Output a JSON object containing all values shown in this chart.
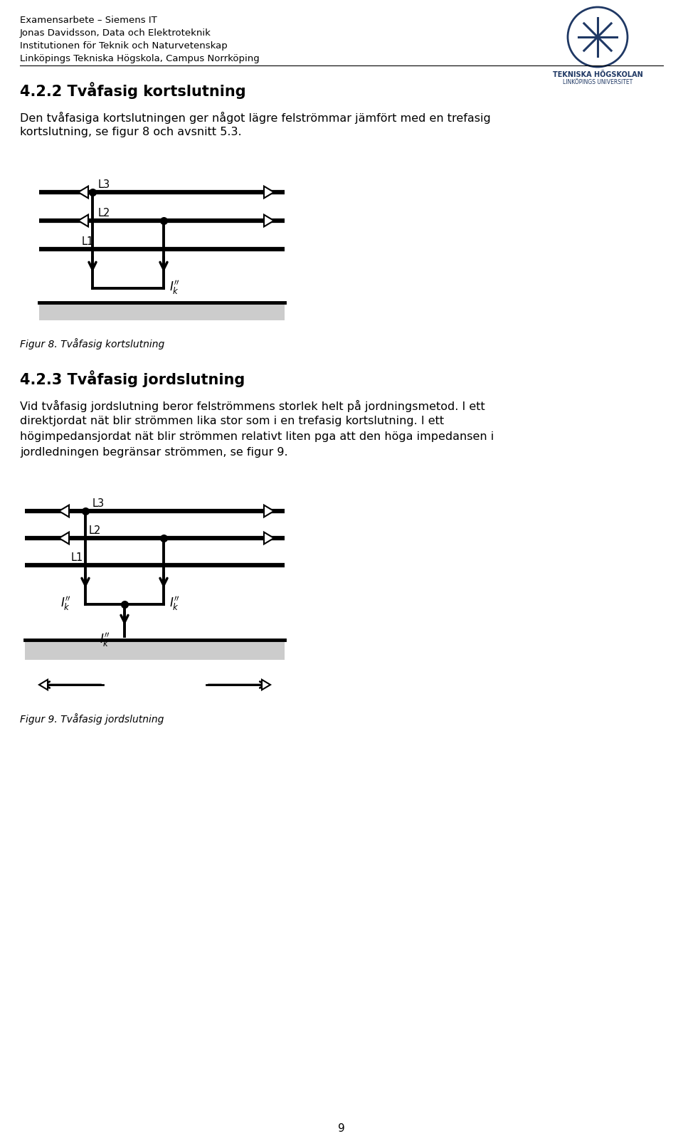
{
  "bg_color": "#ffffff",
  "header_lines": [
    "Examensarbete – Siemens IT",
    "Jonas Davidsson, Data och Elektroteknik",
    "Institutionen för Teknik och Naturvetenskap",
    "Linköpings Tekniska Högskola, Campus Norrköping"
  ],
  "logo_text1": "TEKNISKA HÖGSKOLAN",
  "logo_text2": "LINKÖPINGS UNIVERSITET",
  "section_title": "4.2.2 Tvåfasig kortslutning",
  "para1_line1": "Den tvåfasiga kortslutningen ger något lägre felströmmar jämfört med en trefasig",
  "para1_line2": "kortslutning, se figur 8 och avsnitt 5.3.",
  "fig8_caption": "Figur 8. Tvåfasig kortslutning",
  "section_title2": "4.2.3 Tvåfasig jordslutning",
  "para2_l1": "Vid tvåfasig jordslutning beror felströmmens storlek helt på jordningsmetod. I ett",
  "para2_l2": "direktjordat nät blir strömmen lika stor som i en trefasig kortslutning. I ett",
  "para2_l3": "högimpedansjordat nät blir strömmen relativt liten pga att den höga impedansen i",
  "para2_l4": "jordledningen begränsar strömmen, se figur 9.",
  "fig9_caption": "Figur 9. Tvåfasig jordslutning",
  "page_number": "9",
  "text_color": "#000000",
  "blue_color": "#1f3864"
}
